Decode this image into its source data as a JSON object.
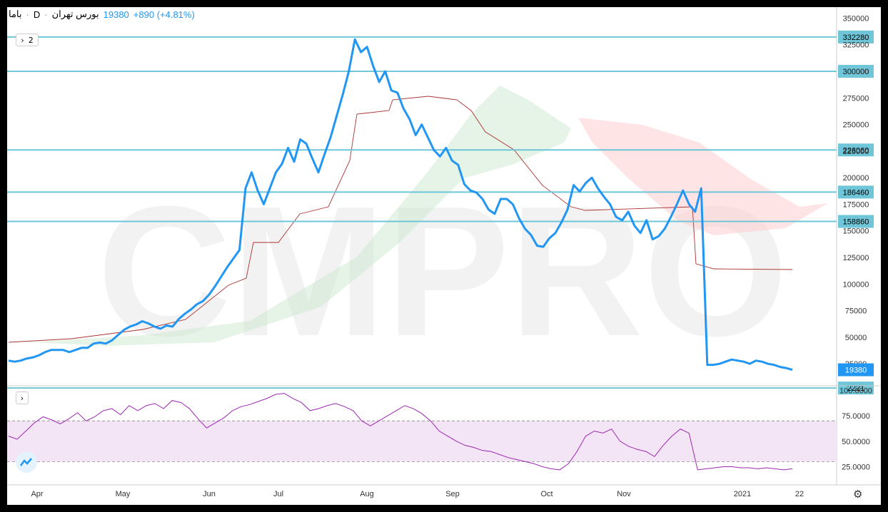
{
  "header": {
    "symbol": "باما",
    "sep": "·",
    "interval": "D",
    "exchange": "بورس تهران",
    "last": "19380",
    "change": "+890 (+4.81%)",
    "indicator_count": "2"
  },
  "watermark": "CMPRO",
  "colors": {
    "price": "#2196f3",
    "hline": "#6ec6d8",
    "rsi": "#9c27b0",
    "rsi_band": "#f3e5f5",
    "kijun": "#a33",
    "cloud_green": "#c8e6c9",
    "cloud_red": "#ffcdd2"
  },
  "chart_data": [
    {
      "type": "line",
      "title": "",
      "x_labels": [
        "Apr",
        "May",
        "Jun",
        "Jul",
        "Aug",
        "Sep",
        "Oct",
        "Nov",
        "2021",
        "22"
      ],
      "y_ticks": [
        350000,
        325000,
        300000,
        275000,
        250000,
        225000,
        200000,
        175000,
        150000,
        125000,
        100000,
        75000,
        50000,
        25000
      ],
      "ylim": [
        5000,
        355000
      ],
      "horizontal_levels": [
        332280,
        300000,
        226060,
        186460,
        158860,
        2221
      ],
      "last_value_label": 19380,
      "series": [
        {
          "values": [
            28000,
            27000,
            28000,
            30000,
            31000,
            33000,
            36000,
            38000,
            38000,
            38000,
            36000,
            38000,
            40000,
            40000,
            44000,
            45000,
            44000,
            47000,
            52000,
            57000,
            60000,
            62000,
            65000,
            63000,
            60000,
            58000,
            61000,
            60000,
            67000,
            72000,
            76000,
            81000,
            84000,
            90000,
            98000,
            107000,
            116000,
            124000,
            132000,
            190000,
            205000,
            188000,
            175000,
            190000,
            205000,
            213000,
            228000,
            215000,
            236000,
            232000,
            218000,
            205000,
            222000,
            238000,
            258000,
            278000,
            300000,
            330000,
            318000,
            323000,
            305000,
            290000,
            300000,
            282000,
            280000,
            265000,
            255000,
            240000,
            250000,
            238000,
            226000,
            220000,
            228000,
            216000,
            212000,
            194000,
            188000,
            186000,
            180000,
            170000,
            166000,
            180000,
            180000,
            175000,
            162000,
            152000,
            146000,
            136000,
            135000,
            143000,
            148000,
            158000,
            170000,
            193000,
            187000,
            195000,
            200000,
            190000,
            182000,
            175000,
            163000,
            160000,
            168000,
            155000,
            148000,
            160000,
            142000,
            145000,
            152000,
            163000,
            175000,
            188000,
            175000,
            168000,
            190000,
            24000,
            24000,
            25000,
            27000,
            29000,
            28000,
            27000,
            25000,
            28000,
            27000,
            25000,
            24000,
            22000,
            21000,
            19380
          ]
        }
      ]
    },
    {
      "type": "line",
      "title": "",
      "y_ticks": [
        100,
        75,
        50,
        25
      ],
      "ylim": [
        10,
        103
      ],
      "bands": [
        70,
        30
      ],
      "series": [
        {
          "values": [
            55,
            52,
            60,
            68,
            74,
            71,
            67,
            72,
            78,
            70,
            74,
            80,
            82,
            76,
            85,
            80,
            85,
            87,
            82,
            90,
            88,
            82,
            72,
            63,
            68,
            73,
            80,
            84,
            86,
            89,
            92,
            96,
            97,
            92,
            88,
            80,
            82,
            85,
            87,
            84,
            80,
            70,
            65,
            70,
            75,
            80,
            85,
            82,
            77,
            70,
            60,
            55,
            50,
            46,
            44,
            41,
            40,
            37,
            34,
            32,
            30,
            28,
            25,
            23,
            22,
            28,
            40,
            55,
            60,
            58,
            62,
            50,
            45,
            42,
            40,
            35,
            46,
            55,
            62,
            58,
            22,
            23,
            24,
            25,
            25,
            24,
            24,
            23,
            24,
            23,
            22,
            23
          ]
        }
      ]
    }
  ]
}
